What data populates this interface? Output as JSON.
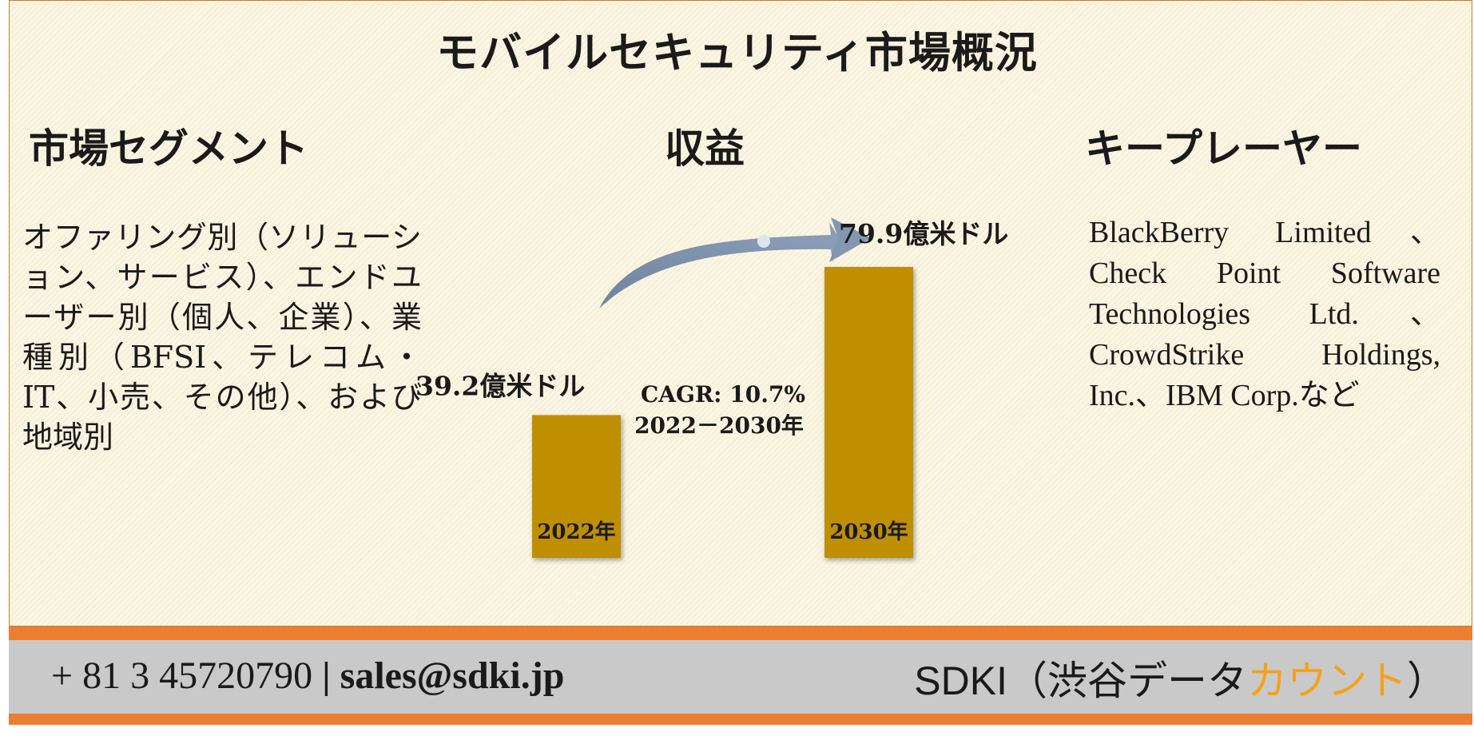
{
  "title": "モバイルセキュリティ市場概況",
  "sections": {
    "segment": {
      "heading": "市場セグメント",
      "text": "オファリング別（ソリューション、サービス）、エンドユーザー別（個人、企業）、業種別（BFSI、テレコム・IT、小売、その他）、および地域別"
    },
    "revenue": {
      "heading": "収益"
    },
    "players": {
      "heading": "キープレーヤー",
      "text": "BlackBerry Limited、Check Point Software Technologies Ltd.、CrowdStrike Holdings, Inc.、IBM Corp.など"
    }
  },
  "chart_data": {
    "type": "bar",
    "categories": [
      "2022年",
      "2030年"
    ],
    "values": [
      39.2,
      79.9
    ],
    "value_labels": [
      "39.2億米ドル",
      "79.9億米ドル"
    ],
    "unit": "億米ドル",
    "cagr_label": "CAGR: 10.7%",
    "cagr_period": "2022－2030年",
    "title": "",
    "xlabel": "",
    "ylabel": "",
    "colors": {
      "bar": "#bf8f00",
      "arrow": "#8497b0"
    }
  },
  "footer": {
    "contact_phone": "+ 81 3 45720790",
    "separator": "|",
    "contact_email": "sales@sdki.jp",
    "brand_main": "SDKI（渋谷データ",
    "brand_accent": "カウント",
    "brand_close": "）",
    "colors": {
      "stripe": "#ed7d31",
      "band": "#c9c9c9",
      "accent": "#f4a21a"
    }
  }
}
